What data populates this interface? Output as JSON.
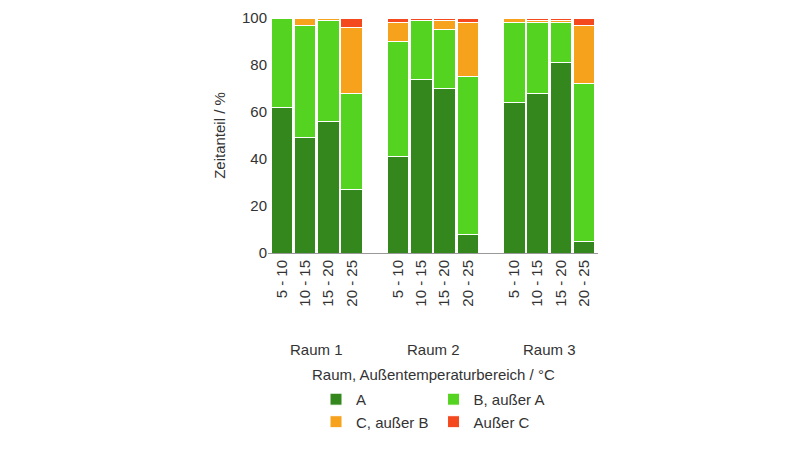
{
  "chart_data": {
    "type": "bar",
    "stacked": true,
    "x_label": "Raum, Außentemperaturbereich / °C",
    "y_label": "Zeitanteil / %",
    "groups": [
      "Raum 1",
      "Raum 1",
      "Raum 1",
      "Raum 1",
      "Raum 2",
      "Raum 2",
      "Raum 2",
      "Raum 2",
      "Raum 3",
      "Raum 3",
      "Raum 3",
      "Raum 3"
    ],
    "categories": [
      "5 - 10",
      "10 - 15",
      "15 - 20",
      "20 - 25",
      "5 - 10",
      "10 - 15",
      "15 - 20",
      "20 - 25",
      "5 - 10",
      "10 - 15",
      "15 - 20",
      "20 - 25"
    ],
    "series": [
      {
        "name": "A",
        "color": "#34871c",
        "values": [
          62,
          49,
          56,
          27,
          41,
          74,
          70,
          8,
          64,
          68,
          81,
          5
        ]
      },
      {
        "name": "B, außer A",
        "color": "#55d321",
        "values": [
          38,
          48,
          43,
          41,
          49,
          25,
          25,
          67,
          34,
          30,
          17,
          67
        ]
      },
      {
        "name": "C, außer B",
        "color": "#f7a21c",
        "values": [
          0,
          3,
          1,
          28,
          8,
          0,
          4,
          23,
          2,
          1,
          1,
          25
        ]
      },
      {
        "name": "Außer C",
        "color": "#f4481f",
        "values": [
          0,
          0,
          0,
          4,
          2,
          1,
          1,
          2,
          0,
          1,
          1,
          3
        ]
      }
    ],
    "ylim": [
      0,
      100
    ],
    "yticks": [
      0,
      20,
      40,
      60,
      80,
      100
    ],
    "grid": false,
    "legend": "bottom"
  }
}
